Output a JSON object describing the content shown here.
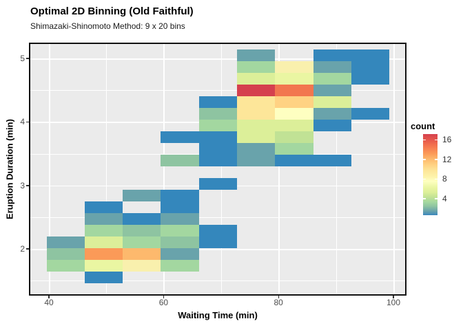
{
  "header": {
    "title": "Optimal 2D Binning (Old Faithful)",
    "subtitle": "Shimazaki-Shinomoto Method: 9 x 20 bins"
  },
  "axes": {
    "x": {
      "title": "Waiting Time (min)",
      "ticks": [
        "40",
        "60",
        "80",
        "100"
      ]
    },
    "y": {
      "title": "Eruption Duration (min)",
      "ticks": [
        "5",
        "4",
        "3",
        "2"
      ]
    }
  },
  "legend": {
    "title": "count",
    "ticks": [
      "16",
      "12",
      "8",
      "4"
    ]
  },
  "colors": {
    "panel_background": "#ebebeb",
    "gridline": "#ffffff",
    "low": "#3a87bd",
    "high": "#d5404e"
  },
  "chart_data": {
    "type": "heatmap",
    "title": "Optimal 2D Binning (Old Faithful)",
    "subtitle": "Shimazaki-Shinomoto Method: 9 x 20 bins",
    "xlabel": "Waiting Time (min)",
    "ylabel": "Eruption Duration (min)",
    "x_bins": 9,
    "y_bins": 20,
    "xlim": [
      39.7,
      99.3
    ],
    "ylim": [
      1.51,
      5.19
    ],
    "x_bin_centers": [
      43.0,
      49.6,
      56.3,
      62.9,
      69.5,
      76.1,
      82.8,
      89.4,
      96.0
    ],
    "y_bin_centers_top_to_bottom": [
      5.1,
      4.92,
      4.73,
      4.55,
      4.36,
      4.18,
      4.0,
      3.81,
      3.63,
      3.44,
      3.26,
      3.08,
      2.89,
      2.71,
      2.52,
      2.34,
      2.16,
      1.97,
      1.79,
      1.6
    ],
    "legend_range": [
      1,
      17
    ],
    "palette": {
      "1": "#3487bc",
      "2": "#69a3ab",
      "3": "#8ec4a1",
      "4": "#a3d7a0",
      "5": "#c1e295",
      "6": "#dcef99",
      "7": "#eaf6a2",
      "8": "#f9f0ad",
      "9": "#feffc1",
      "10": "#fde699",
      "11": "#ffd283",
      "12": "#fdb96d",
      "13": "#fb9a58",
      "14": "#f2764f",
      "17": "#d5404e"
    },
    "tiles": [
      {
        "r": 0,
        "c": 5,
        "count": 2
      },
      {
        "r": 0,
        "c": 7,
        "count": 1
      },
      {
        "r": 0,
        "c": 8,
        "count": 1
      },
      {
        "r": 1,
        "c": 5,
        "count": 4
      },
      {
        "r": 1,
        "c": 6,
        "count": 8
      },
      {
        "r": 1,
        "c": 7,
        "count": 2
      },
      {
        "r": 1,
        "c": 8,
        "count": 1
      },
      {
        "r": 2,
        "c": 5,
        "count": 6
      },
      {
        "r": 2,
        "c": 6,
        "count": 7
      },
      {
        "r": 2,
        "c": 7,
        "count": 4
      },
      {
        "r": 2,
        "c": 8,
        "count": 1
      },
      {
        "r": 3,
        "c": 5,
        "count": 17
      },
      {
        "r": 3,
        "c": 6,
        "count": 14
      },
      {
        "r": 3,
        "c": 7,
        "count": 2
      },
      {
        "r": 4,
        "c": 4,
        "count": 1
      },
      {
        "r": 4,
        "c": 5,
        "count": 10
      },
      {
        "r": 4,
        "c": 6,
        "count": 11
      },
      {
        "r": 4,
        "c": 7,
        "count": 6
      },
      {
        "r": 5,
        "c": 4,
        "count": 3
      },
      {
        "r": 5,
        "c": 5,
        "count": 10
      },
      {
        "r": 5,
        "c": 6,
        "count": 9
      },
      {
        "r": 5,
        "c": 7,
        "count": 2
      },
      {
        "r": 5,
        "c": 8,
        "count": 1
      },
      {
        "r": 6,
        "c": 4,
        "count": 4
      },
      {
        "r": 6,
        "c": 5,
        "count": 6
      },
      {
        "r": 6,
        "c": 6,
        "count": 6
      },
      {
        "r": 6,
        "c": 7,
        "count": 1
      },
      {
        "r": 7,
        "c": 3,
        "count": 1
      },
      {
        "r": 7,
        "c": 4,
        "count": 1
      },
      {
        "r": 7,
        "c": 5,
        "count": 6
      },
      {
        "r": 7,
        "c": 6,
        "count": 5
      },
      {
        "r": 8,
        "c": 4,
        "count": 1
      },
      {
        "r": 8,
        "c": 5,
        "count": 2
      },
      {
        "r": 8,
        "c": 6,
        "count": 4
      },
      {
        "r": 9,
        "c": 3,
        "count": 3
      },
      {
        "r": 9,
        "c": 4,
        "count": 1
      },
      {
        "r": 9,
        "c": 5,
        "count": 2
      },
      {
        "r": 9,
        "c": 6,
        "count": 1
      },
      {
        "r": 9,
        "c": 7,
        "count": 1
      },
      {
        "r": 11,
        "c": 4,
        "count": 1
      },
      {
        "r": 12,
        "c": 2,
        "count": 2
      },
      {
        "r": 12,
        "c": 3,
        "count": 1
      },
      {
        "r": 13,
        "c": 1,
        "count": 1
      },
      {
        "r": 13,
        "c": 3,
        "count": 1
      },
      {
        "r": 14,
        "c": 1,
        "count": 2
      },
      {
        "r": 14,
        "c": 2,
        "count": 1
      },
      {
        "r": 14,
        "c": 3,
        "count": 2
      },
      {
        "r": 15,
        "c": 1,
        "count": 4
      },
      {
        "r": 15,
        "c": 2,
        "count": 3
      },
      {
        "r": 15,
        "c": 3,
        "count": 4
      },
      {
        "r": 15,
        "c": 4,
        "count": 1
      },
      {
        "r": 16,
        "c": 0,
        "count": 2
      },
      {
        "r": 16,
        "c": 1,
        "count": 6
      },
      {
        "r": 16,
        "c": 2,
        "count": 4
      },
      {
        "r": 16,
        "c": 3,
        "count": 3
      },
      {
        "r": 16,
        "c": 4,
        "count": 1
      },
      {
        "r": 17,
        "c": 0,
        "count": 3
      },
      {
        "r": 17,
        "c": 1,
        "count": 13
      },
      {
        "r": 17,
        "c": 2,
        "count": 12
      },
      {
        "r": 17,
        "c": 3,
        "count": 2
      },
      {
        "r": 18,
        "c": 0,
        "count": 4
      },
      {
        "r": 18,
        "c": 1,
        "count": 7
      },
      {
        "r": 18,
        "c": 2,
        "count": 8
      },
      {
        "r": 18,
        "c": 3,
        "count": 4
      },
      {
        "r": 19,
        "c": 1,
        "count": 1
      }
    ]
  }
}
